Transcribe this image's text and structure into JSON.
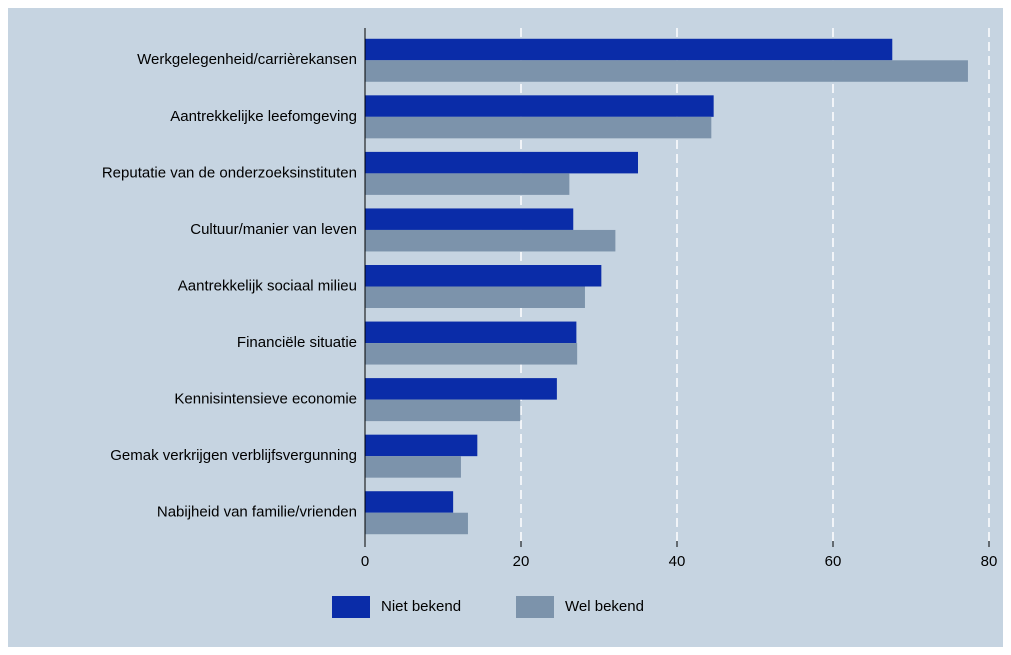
{
  "chart_data": {
    "type": "bar",
    "orientation": "horizontal",
    "categories": [
      "Werkgelegenheid/carrièrekansen",
      "Aantrekkelijke leefomgeving",
      "Reputatie van de onderzoeksinstituten",
      "Cultuur/manier van leven",
      "Aantrekkelijk sociaal milieu",
      "Financiële situatie",
      "Kennisintensieve economie",
      "Gemak verkrijgen verblijfsvergunning",
      "Nabijheid van familie/vrienden"
    ],
    "series": [
      {
        "name": "Niet bekend",
        "color": "#0a2ca8",
        "values": [
          67.6,
          44.7,
          35.0,
          26.7,
          30.3,
          27.1,
          24.6,
          14.4,
          11.3
        ]
      },
      {
        "name": "Wel bekend",
        "color": "#7c93ab",
        "values": [
          77.3,
          44.4,
          26.2,
          32.1,
          28.2,
          27.2,
          19.9,
          12.3,
          13.2
        ]
      }
    ],
    "xlim": [
      0,
      80
    ],
    "xticks": [
      0,
      20,
      40,
      60,
      80
    ],
    "grid": true,
    "legend": "bottom"
  }
}
